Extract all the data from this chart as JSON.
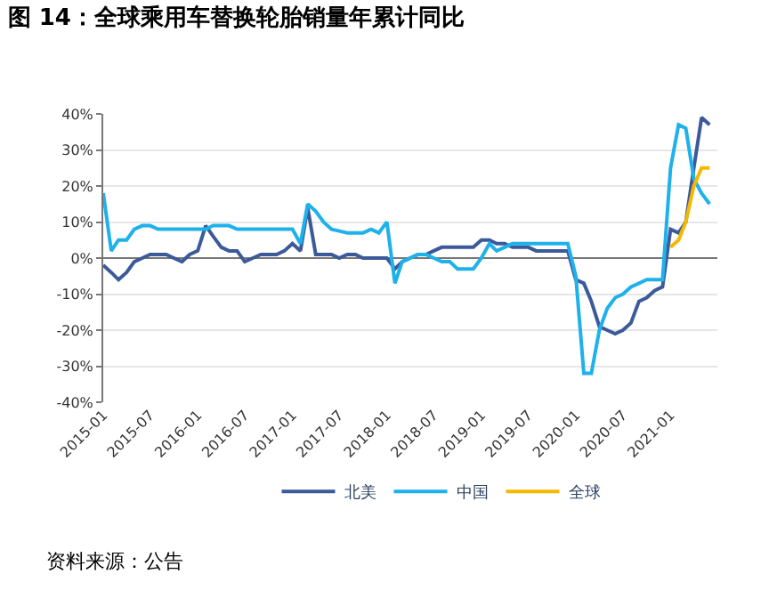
{
  "chart_data": {
    "type": "line",
    "title": "图 14：全球乘用车替换轮胎销量年累计同比",
    "annotations": [
      "资料来源：公告"
    ],
    "x": [
      "2015-01",
      "2015-02",
      "2015-03",
      "2015-04",
      "2015-05",
      "2015-06",
      "2015-07",
      "2015-08",
      "2015-09",
      "2015-10",
      "2015-11",
      "2015-12",
      "2016-01",
      "2016-02",
      "2016-03",
      "2016-04",
      "2016-05",
      "2016-06",
      "2016-07",
      "2016-08",
      "2016-09",
      "2016-10",
      "2016-11",
      "2016-12",
      "2017-01",
      "2017-02",
      "2017-03",
      "2017-04",
      "2017-05",
      "2017-06",
      "2017-07",
      "2017-08",
      "2017-09",
      "2017-10",
      "2017-11",
      "2017-12",
      "2018-01",
      "2018-02",
      "2018-03",
      "2018-04",
      "2018-05",
      "2018-06",
      "2018-07",
      "2018-08",
      "2018-09",
      "2018-10",
      "2018-11",
      "2018-12",
      "2019-01",
      "2019-02",
      "2019-03",
      "2019-04",
      "2019-05",
      "2019-06",
      "2019-07",
      "2019-08",
      "2019-09",
      "2019-10",
      "2019-11",
      "2019-12",
      "2020-01",
      "2020-02",
      "2020-03",
      "2020-04",
      "2020-05",
      "2020-06",
      "2020-07",
      "2020-08",
      "2020-09",
      "2020-10",
      "2020-11",
      "2020-12",
      "2021-01",
      "2021-02",
      "2021-03",
      "2021-04",
      "2021-05",
      "2021-06"
    ],
    "series": [
      {
        "name": "北美",
        "color": "#3c5a9a",
        "values": [
          -2,
          -4,
          -6,
          -4,
          -1,
          0,
          1,
          1,
          1,
          0,
          -1,
          1,
          2,
          9,
          6,
          3,
          2,
          2,
          -1,
          0,
          1,
          1,
          1,
          2,
          4,
          2,
          14,
          1,
          1,
          1,
          0,
          1,
          1,
          0,
          0,
          0,
          0,
          -3,
          -1,
          0,
          1,
          1,
          2,
          3,
          3,
          3,
          3,
          3,
          5,
          5,
          4,
          4,
          3,
          3,
          3,
          2,
          2,
          2,
          2,
          2,
          -6,
          -7,
          -12,
          -19,
          -20,
          -21,
          -20,
          -18,
          -12,
          -11,
          -9,
          -8,
          8,
          7,
          10,
          25,
          39,
          37
        ]
      },
      {
        "name": "中国",
        "color": "#1fb1ea",
        "values": [
          18,
          2,
          5,
          5,
          8,
          9,
          9,
          8,
          8,
          8,
          8,
          8,
          8,
          8,
          9,
          9,
          9,
          8,
          8,
          8,
          8,
          8,
          8,
          8,
          8,
          4,
          15,
          13,
          10,
          8,
          7.5,
          7,
          7,
          7,
          8,
          7,
          10,
          -7,
          -1,
          0,
          1,
          1,
          0,
          -1,
          -1,
          -3,
          -3,
          -3,
          0,
          4,
          2,
          3,
          4,
          4,
          4,
          4,
          4,
          4,
          4,
          4,
          -5,
          -32,
          -32,
          -20,
          -14,
          -11,
          -10,
          -8,
          -7,
          -6,
          -6,
          -6,
          25,
          37,
          36,
          22,
          18,
          15
        ]
      },
      {
        "name": "全球",
        "color": "#f5b800",
        "values": [
          null,
          null,
          null,
          null,
          null,
          null,
          null,
          null,
          null,
          null,
          null,
          null,
          null,
          null,
          null,
          null,
          null,
          null,
          null,
          null,
          null,
          null,
          null,
          null,
          null,
          null,
          null,
          null,
          null,
          null,
          null,
          null,
          null,
          null,
          null,
          null,
          null,
          null,
          null,
          null,
          null,
          null,
          null,
          null,
          null,
          null,
          null,
          null,
          null,
          null,
          null,
          null,
          null,
          null,
          null,
          null,
          null,
          null,
          null,
          null,
          null,
          null,
          null,
          null,
          null,
          null,
          null,
          null,
          null,
          null,
          null,
          null,
          3,
          5,
          10,
          20,
          25,
          25
        ]
      }
    ],
    "xlim": [
      "2015-01",
      "2021-07"
    ],
    "xticks": [
      {
        "value": "2015-01",
        "label": "2015-01"
      },
      {
        "value": "2015-07",
        "label": "2015-07"
      },
      {
        "value": "2016-01",
        "label": "2016-01"
      },
      {
        "value": "2016-07",
        "label": "2016-07"
      },
      {
        "value": "2017-01",
        "label": "2017-01"
      },
      {
        "value": "2017-07",
        "label": "2017-07"
      },
      {
        "value": "2018-01",
        "label": "2018-01"
      },
      {
        "value": "2018-07",
        "label": "2018-07"
      },
      {
        "value": "2019-01",
        "label": "2019-01"
      },
      {
        "value": "2019-07",
        "label": "2019-07"
      },
      {
        "value": "2020-01",
        "label": "2020-01"
      },
      {
        "value": "2020-07",
        "label": "2020-07"
      },
      {
        "value": "2021-01",
        "label": "2021-01"
      }
    ],
    "ylim": [
      -40,
      40
    ],
    "yticks": [
      {
        "value": -40,
        "label": "-40%"
      },
      {
        "value": -30,
        "label": "-30%"
      },
      {
        "value": -20,
        "label": "-20%"
      },
      {
        "value": -10,
        "label": "-10%"
      },
      {
        "value": 0,
        "label": "0%"
      },
      {
        "value": 10,
        "label": "10%"
      },
      {
        "value": 20,
        "label": "20%"
      },
      {
        "value": 30,
        "label": "30%"
      },
      {
        "value": 40,
        "label": "40%"
      }
    ],
    "grid": "y",
    "legend": "bottom",
    "marker": "none",
    "line_style": "solid"
  }
}
